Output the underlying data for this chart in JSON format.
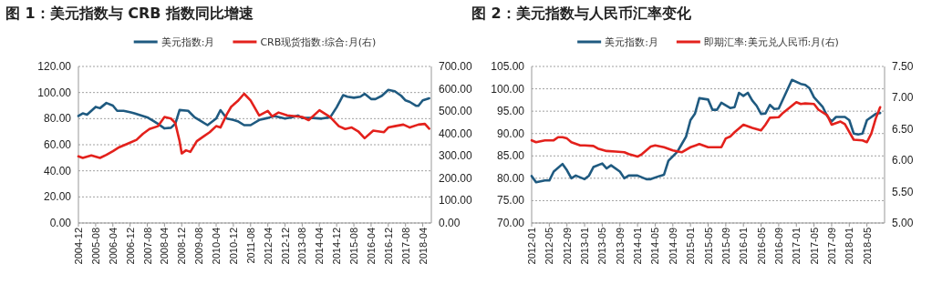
{
  "chart_data": [
    {
      "type": "line",
      "title": "图 1：美元指数与 CRB 指数同比增速",
      "grid": "y",
      "legend": "top",
      "xlim": [
        "2004-12",
        "2018-08"
      ],
      "xticks": [
        "2004-12",
        "2005-08",
        "2006-04",
        "2006-12",
        "2007-08",
        "2008-04",
        "2008-12",
        "2009-08",
        "2010-04",
        "2010-12",
        "2011-08",
        "2012-04",
        "2012-12",
        "2013-08",
        "2014-04",
        "2014-12",
        "2015-08",
        "2016-04",
        "2016-12",
        "2017-08",
        "2018-04"
      ],
      "ylim": [
        0,
        120
      ],
      "yticks": [
        {
          "value": 0,
          "label": "0.00"
        },
        {
          "value": 20,
          "label": "20.00"
        },
        {
          "value": 40,
          "label": "40.00"
        },
        {
          "value": 60,
          "label": "60.00"
        },
        {
          "value": 80,
          "label": "80.00"
        },
        {
          "value": 100,
          "label": "100.00"
        },
        {
          "value": 120,
          "label": "120.00"
        }
      ],
      "y2lim": [
        0,
        700
      ],
      "y2ticks": [
        {
          "value": 0,
          "label": "0.00"
        },
        {
          "value": 100,
          "label": "100.00"
        },
        {
          "value": 200,
          "label": "200.00"
        },
        {
          "value": 300,
          "label": "300.00"
        },
        {
          "value": 400,
          "label": "400.00"
        },
        {
          "value": 500,
          "label": "500.00"
        },
        {
          "value": 600,
          "label": "600.00"
        },
        {
          "value": 700,
          "label": "700.00"
        }
      ],
      "series": [
        {
          "name": "美元指数:月",
          "color": "#1f5a80",
          "x": [
            "2004-12",
            "2005-02",
            "2005-04",
            "2005-08",
            "2005-10",
            "2006-01",
            "2006-04",
            "2006-06",
            "2006-09",
            "2006-12",
            "2007-02",
            "2007-04",
            "2007-08",
            "2007-11",
            "2008-01",
            "2008-04",
            "2008-07",
            "2008-09",
            "2008-11",
            "2009-03",
            "2009-06",
            "2009-09",
            "2009-12",
            "2010-04",
            "2010-06",
            "2010-09",
            "2010-12",
            "2011-02",
            "2011-05",
            "2011-08",
            "2011-12",
            "2012-04",
            "2012-07",
            "2012-12",
            "2013-03",
            "2013-06",
            "2013-08",
            "2014-01",
            "2014-05",
            "2014-09",
            "2014-12",
            "2015-03",
            "2015-05",
            "2015-08",
            "2015-11",
            "2016-01",
            "2016-04",
            "2016-06",
            "2016-09",
            "2016-12",
            "2017-03",
            "2017-06",
            "2017-08",
            "2017-10",
            "2018-01",
            "2018-02",
            "2018-04",
            "2018-07"
          ],
          "values": [
            82,
            84,
            83,
            89,
            88,
            92,
            90,
            86,
            86,
            85,
            84,
            83,
            81,
            78,
            76,
            72.5,
            73,
            76,
            86.6,
            86,
            81,
            78,
            75,
            80,
            86.5,
            80,
            79,
            78,
            75,
            75,
            79,
            80.5,
            82,
            80,
            81,
            82.4,
            80.5,
            80.5,
            80,
            81,
            88.7,
            98,
            96.8,
            96,
            96.8,
            99,
            95,
            95,
            97.5,
            102,
            101,
            97.5,
            94,
            92.8,
            89.8,
            89.8,
            94,
            95.6
          ]
        },
        {
          "name": "CRB现货指数:综合:月(右)",
          "color": "#e3211c",
          "axis": "y2",
          "x": [
            "2004-12",
            "2005-02",
            "2005-06",
            "2005-10",
            "2006-01",
            "2006-04",
            "2006-07",
            "2006-11",
            "2007-03",
            "2007-06",
            "2007-09",
            "2008-01",
            "2008-04",
            "2008-07",
            "2008-09",
            "2008-11",
            "2008-12",
            "2009-02",
            "2009-04",
            "2009-07",
            "2009-10",
            "2010-01",
            "2010-04",
            "2010-06",
            "2010-09",
            "2010-11",
            "2011-02",
            "2011-05",
            "2011-08",
            "2011-12",
            "2012-04",
            "2012-06",
            "2012-09",
            "2013-01",
            "2013-08",
            "2013-11",
            "2014-04",
            "2014-09",
            "2015-01",
            "2015-04",
            "2015-07",
            "2015-10",
            "2016-01",
            "2016-05",
            "2016-10",
            "2016-12",
            "2017-03",
            "2017-07",
            "2017-10",
            "2018-02",
            "2018-05",
            "2018-07"
          ],
          "values": [
            298,
            291,
            302,
            291,
            305,
            321,
            339,
            355,
            372,
            399,
            420,
            433,
            474,
            467,
            447,
            366,
            311,
            325,
            318,
            366,
            386,
            406,
            433,
            427,
            487,
            520,
            545,
            578,
            548,
            481,
            501,
            477,
            494,
            481,
            474,
            460,
            504,
            474,
            433,
            420,
            427,
            410,
            379,
            413,
            406,
            427,
            433,
            440,
            427,
            440,
            443,
            422
          ]
        }
      ]
    },
    {
      "type": "line",
      "title": "图 2：美元指数与人民币汇率变化",
      "grid": "y",
      "legend": "top",
      "xlim": [
        "2012-01",
        "2018-09"
      ],
      "xticks": [
        "2012-01",
        "2012-05",
        "2012-09",
        "2013-01",
        "2013-05",
        "2013-09",
        "2014-01",
        "2014-05",
        "2014-09",
        "2015-01",
        "2015-05",
        "2015-09",
        "2016-01",
        "2016-05",
        "2016-09",
        "2017-01",
        "2017-05",
        "2017-09",
        "2018-01",
        "2018-05"
      ],
      "ylim": [
        70,
        105
      ],
      "yticks": [
        {
          "value": 70,
          "label": "70.00"
        },
        {
          "value": 75,
          "label": "75.00"
        },
        {
          "value": 80,
          "label": "80.00"
        },
        {
          "value": 85,
          "label": "85.00"
        },
        {
          "value": 90,
          "label": "90.00"
        },
        {
          "value": 95,
          "label": "95.00"
        },
        {
          "value": 100,
          "label": "100.00"
        },
        {
          "value": 105,
          "label": "105.00"
        }
      ],
      "y2lim": [
        5,
        7.5
      ],
      "y2ticks": [
        {
          "value": 5,
          "label": "5.00"
        },
        {
          "value": 5.5,
          "label": "5.50"
        },
        {
          "value": 6,
          "label": "6.00"
        },
        {
          "value": 6.5,
          "label": "6.50"
        },
        {
          "value": 7,
          "label": "7.00"
        },
        {
          "value": 7.5,
          "label": "7.50"
        }
      ],
      "series": [
        {
          "name": "美元指数:月",
          "color": "#1f5a80",
          "x": [
            "2012-01",
            "2012-02",
            "2012-04",
            "2012-05",
            "2012-06",
            "2012-08",
            "2012-09",
            "2012-10",
            "2012-11",
            "2013-01",
            "2013-02",
            "2013-03",
            "2013-05",
            "2013-06",
            "2013-07",
            "2013-09",
            "2013-10",
            "2013-11",
            "2014-01",
            "2014-03",
            "2014-04",
            "2014-06",
            "2014-07",
            "2014-08",
            "2014-10",
            "2014-11",
            "2014-12",
            "2015-01",
            "2015-02",
            "2015-03",
            "2015-05",
            "2015-06",
            "2015-07",
            "2015-08",
            "2015-10",
            "2015-11",
            "2015-12",
            "2016-01",
            "2016-02",
            "2016-03",
            "2016-04",
            "2016-05",
            "2016-06",
            "2016-07",
            "2016-08",
            "2016-09",
            "2016-12",
            "2017-02",
            "2017-03",
            "2017-04",
            "2017-05",
            "2017-07",
            "2017-08",
            "2017-09",
            "2017-10",
            "2017-12",
            "2018-01",
            "2018-02",
            "2018-03",
            "2018-04",
            "2018-05",
            "2018-07",
            "2018-08"
          ],
          "values": [
            80.5,
            79.1,
            79.5,
            79.5,
            81.5,
            83.2,
            81.8,
            80,
            80.6,
            79.8,
            80.6,
            82.5,
            83.3,
            82.2,
            82.9,
            81.5,
            80,
            80.6,
            80.6,
            79.8,
            79.8,
            80.5,
            80.8,
            83.9,
            85.9,
            87.6,
            89.3,
            93,
            94.4,
            97.9,
            97.6,
            95.3,
            95.3,
            96.9,
            95.7,
            95.9,
            99.1,
            98.4,
            99.1,
            97.4,
            96.2,
            94.4,
            94.5,
            96.4,
            95.5,
            95.6,
            102,
            101.1,
            100.9,
            100.1,
            98.1,
            95.9,
            93.9,
            92.7,
            93.7,
            93.7,
            93,
            90,
            89.8,
            90,
            93,
            94.4,
            94.6
          ]
        },
        {
          "name": "即期汇率:美元兑人民币:月(右)",
          "color": "#e3211c",
          "axis": "y2",
          "x": [
            "2012-01",
            "2012-02",
            "2012-04",
            "2012-06",
            "2012-07",
            "2012-08",
            "2012-09",
            "2012-10",
            "2012-12",
            "2013-01",
            "2013-03",
            "2013-04",
            "2013-06",
            "2013-08",
            "2013-10",
            "2013-11",
            "2014-01",
            "2014-02",
            "2014-04",
            "2014-05",
            "2014-07",
            "2014-09",
            "2014-11",
            "2015-01",
            "2015-03",
            "2015-05",
            "2015-07",
            "2015-08",
            "2015-09",
            "2015-10",
            "2015-11",
            "2016-01",
            "2016-03",
            "2016-05",
            "2016-06",
            "2016-07",
            "2016-09",
            "2016-10",
            "2017-01",
            "2017-02",
            "2017-03",
            "2017-05",
            "2017-06",
            "2017-08",
            "2017-09",
            "2017-11",
            "2017-12",
            "2018-02",
            "2018-04",
            "2018-05",
            "2018-06",
            "2018-07",
            "2018-08"
          ],
          "values": [
            6.32,
            6.29,
            6.32,
            6.32,
            6.37,
            6.37,
            6.35,
            6.29,
            6.24,
            6.24,
            6.23,
            6.19,
            6.15,
            6.14,
            6.13,
            6.1,
            6.06,
            6.1,
            6.22,
            6.24,
            6.21,
            6.16,
            6.13,
            6.21,
            6.26,
            6.21,
            6.21,
            6.21,
            6.35,
            6.38,
            6.45,
            6.57,
            6.52,
            6.48,
            6.57,
            6.68,
            6.69,
            6.76,
            6.93,
            6.9,
            6.91,
            6.9,
            6.81,
            6.72,
            6.57,
            6.62,
            6.58,
            6.33,
            6.32,
            6.29,
            6.43,
            6.67,
            6.85
          ]
        }
      ]
    }
  ]
}
